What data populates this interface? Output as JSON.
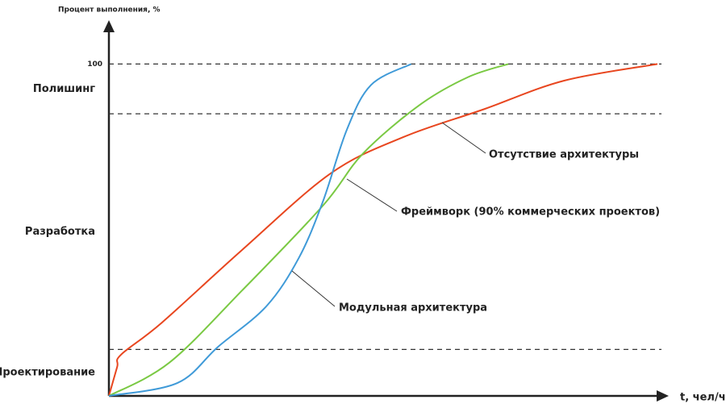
{
  "chart_data": {
    "type": "line",
    "y_label": "Процент выполнения, %",
    "x_label": "t, чел/ч",
    "xlim": [
      0,
      100
    ],
    "ylim": [
      0,
      112
    ],
    "yticks": [
      100
    ],
    "phase_lines": [
      100,
      85,
      14
    ],
    "phases": [
      "Полишинг",
      "Разработка",
      "Проектирование"
    ],
    "series": [
      {
        "name": "Отсутствие архитектуры",
        "color": "#e8461f",
        "x": [
          0,
          1.5,
          2.2,
          9.6,
          24.3,
          40.4,
          53.7,
          68.4,
          83,
          100
        ],
        "values": [
          0,
          8.7,
          12.4,
          22,
          44,
          67,
          78,
          86.4,
          95,
          100
        ]
      },
      {
        "name": "Фреймворк (90% коммерческих проектов)",
        "color": "#7ac943",
        "x": [
          0,
          11,
          24.3,
          39,
          46.3,
          56.6,
          65.4,
          72.8
        ],
        "values": [
          0,
          10,
          31.8,
          57.3,
          73,
          87.6,
          96,
          100
        ]
      },
      {
        "name": "Модульная архитектура",
        "color": "#3f9ad8",
        "x": [
          0,
          12.5,
          19.9,
          28.7,
          34.6,
          39,
          43.4,
          47.8,
          55.1
        ],
        "values": [
          0,
          3.9,
          14.8,
          27,
          41.5,
          58.5,
          80.3,
          93.7,
          100
        ]
      }
    ]
  }
}
